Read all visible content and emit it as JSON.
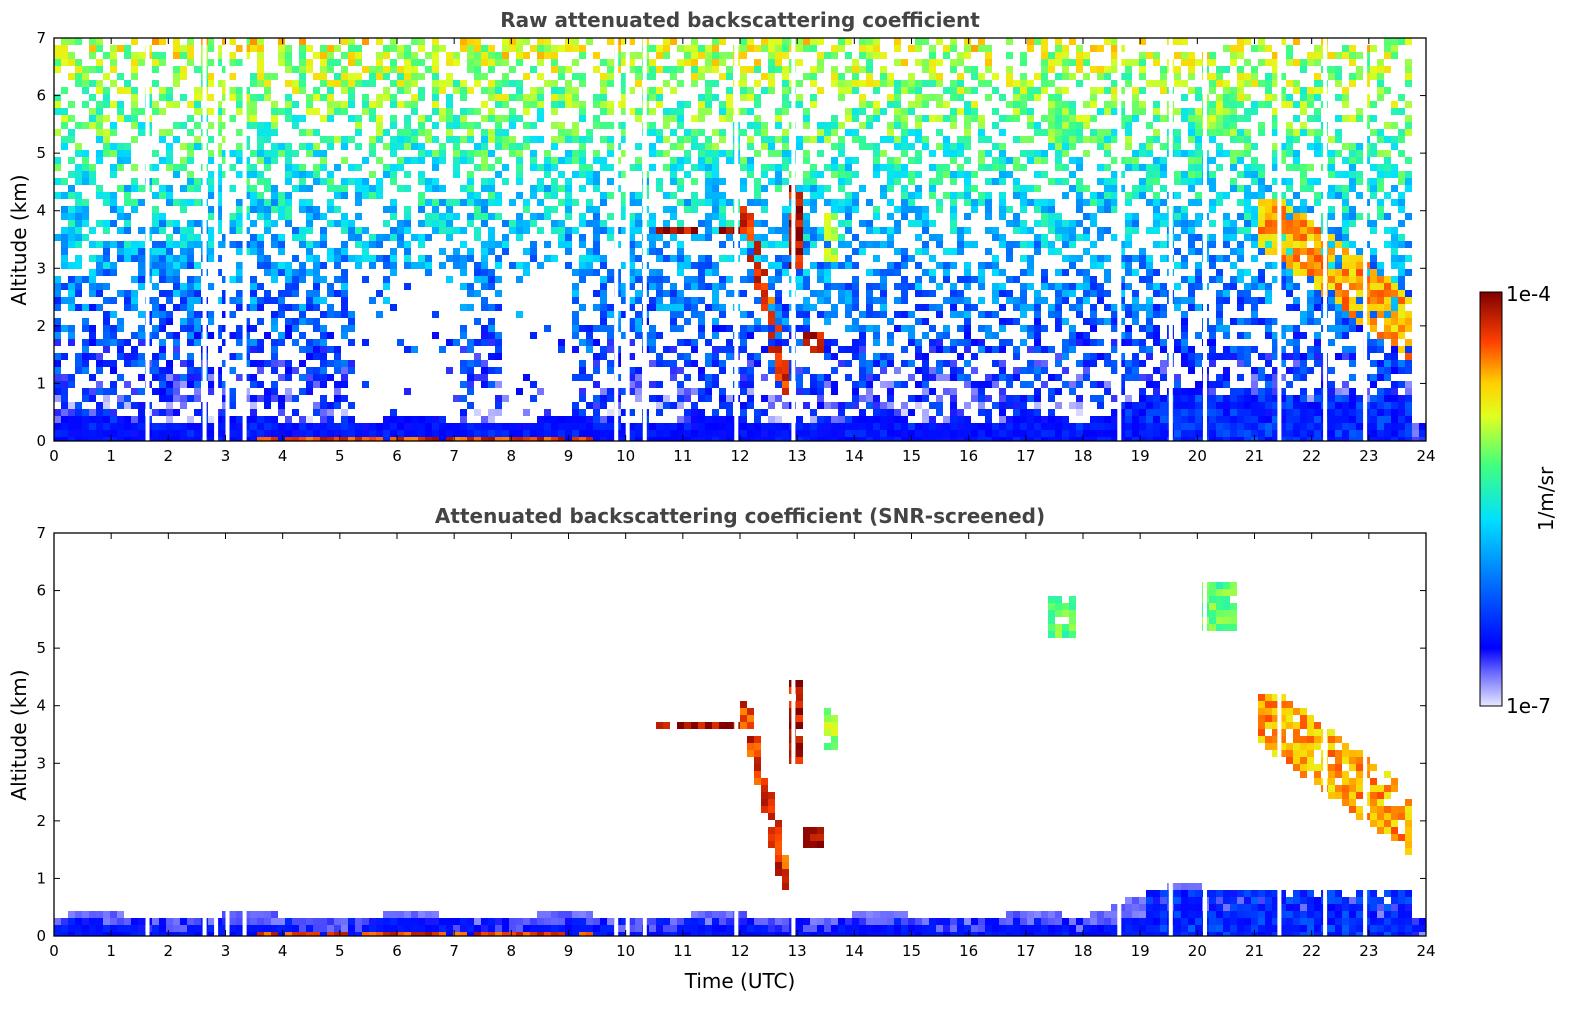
{
  "chart_data": [
    {
      "type": "heatmap",
      "title": "Raw attenuated backscattering coefficient",
      "xlabel": "",
      "ylabel": "Altitude (km)",
      "xlim": [
        0,
        24
      ],
      "ylim": [
        0,
        7
      ],
      "xticks": [
        "0",
        "1",
        "2",
        "3",
        "4",
        "5",
        "6",
        "7",
        "8",
        "9",
        "10",
        "11",
        "12",
        "13",
        "14",
        "15",
        "16",
        "17",
        "18",
        "19",
        "20",
        "21",
        "22",
        "23",
        "24"
      ],
      "yticks": [
        "0",
        "1",
        "2",
        "3",
        "4",
        "5",
        "6",
        "7"
      ],
      "screened": false,
      "features": [
        {
          "label": "boundary layer",
          "t0": 0,
          "t1": 24,
          "z0": 0,
          "z1": 0.4,
          "level": 0.12
        },
        {
          "label": "surface layer",
          "t0": 3.5,
          "t1": 9.4,
          "z0": 0,
          "z1": 0.15,
          "level": 0.9
        },
        {
          "label": "cloud 3.7 km",
          "t0": 10.5,
          "t1": 11.9,
          "z0": 3.6,
          "z1": 3.8,
          "level": 0.98
        },
        {
          "label": "cloud descending",
          "t0": 12.0,
          "t1": 12.8,
          "z0": 0.8,
          "z1": 4.1,
          "level": 0.9
        },
        {
          "label": "cloud rising",
          "t0": 12.8,
          "t1": 13.1,
          "z0": 3.0,
          "z1": 4.5,
          "level": 0.95
        },
        {
          "label": "cloud 13.5h",
          "t0": 13.4,
          "t1": 13.6,
          "z0": 3.2,
          "z1": 4.0,
          "level": 0.65
        },
        {
          "label": "low cloud 13.3h",
          "t0": 13.1,
          "t1": 13.4,
          "z0": 1.6,
          "z1": 2.0,
          "level": 0.95
        },
        {
          "label": "cirrus 17.5h",
          "t0": 17.3,
          "t1": 17.8,
          "z0": 5.2,
          "z1": 6.0,
          "level": 0.6
        },
        {
          "label": "cirrus 20h",
          "t0": 20.0,
          "t1": 20.6,
          "z0": 5.3,
          "z1": 6.2,
          "level": 0.6
        },
        {
          "label": "descending cloud",
          "t0": 21.0,
          "t1": 23.7,
          "z0": 1.3,
          "z1": 4.3,
          "level": 0.8
        },
        {
          "label": "aerosol layer",
          "t0": 19.0,
          "t1": 23.7,
          "z0": 0.0,
          "z1": 0.9,
          "level": 0.2
        }
      ]
    },
    {
      "type": "heatmap",
      "title": "Attenuated backscattering coefficient (SNR-screened)",
      "xlabel": "Time (UTC)",
      "ylabel": "Altitude (km)",
      "xlim": [
        0,
        24
      ],
      "ylim": [
        0,
        7
      ],
      "xticks": [
        "0",
        "1",
        "2",
        "3",
        "4",
        "5",
        "6",
        "7",
        "8",
        "9",
        "10",
        "11",
        "12",
        "13",
        "14",
        "15",
        "16",
        "17",
        "18",
        "19",
        "20",
        "21",
        "22",
        "23",
        "24"
      ],
      "yticks": [
        "0",
        "1",
        "2",
        "3",
        "4",
        "5",
        "6",
        "7"
      ],
      "screened": true
    }
  ],
  "colorbar": {
    "label": "1/m/sr",
    "max_label": "1e-4",
    "min_label": "1e-7",
    "range": [
      1e-07,
      0.0001
    ],
    "scale": "log",
    "colormap": "jet"
  }
}
